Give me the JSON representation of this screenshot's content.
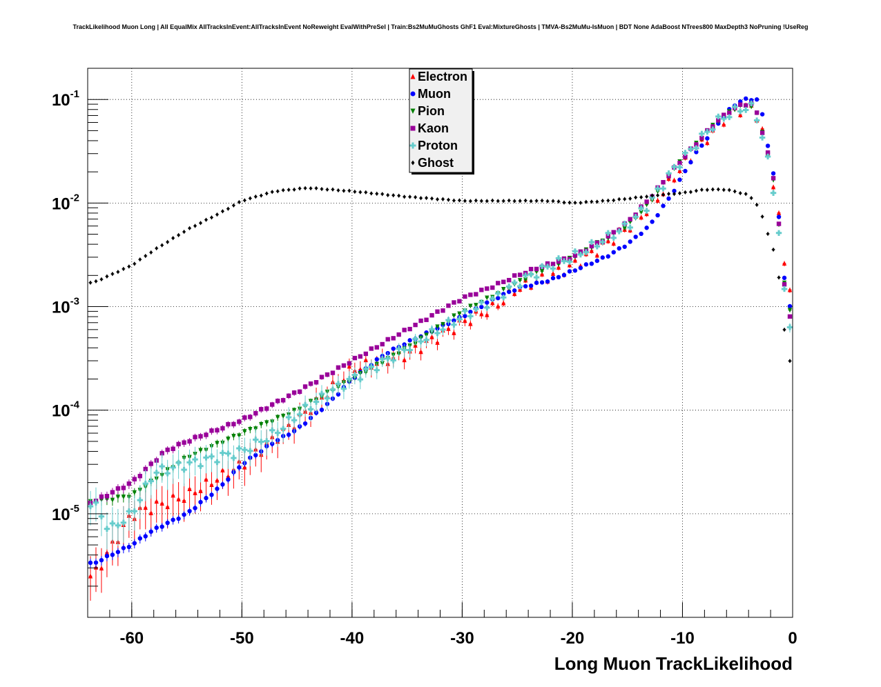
{
  "chart_data": {
    "type": "scatter",
    "title": "TrackLikelihood Muon Long | All EqualMix AllTracksInEvent:AllTracksInEvent NoReweight EvalWithPreSel | Train:Bs2MuMuGhosts GhF1 Eval:MixtureGhosts | TMVA-Bs2MuMu-IsMuon | BDT None AdaBoost NTrees800 MaxDepth3 NoPruning !UseReg",
    "xlabel": "Long Muon TrackLikelihood",
    "ylabel": "",
    "xlim": [
      -64,
      0
    ],
    "ylim": [
      1e-06,
      0.2
    ],
    "yscale": "log",
    "grid": true,
    "legend_position": "top-center",
    "x_ticks": [
      {
        "value": -60,
        "label": "-60"
      },
      {
        "value": -50,
        "label": "-50"
      },
      {
        "value": -40,
        "label": "-40"
      },
      {
        "value": -30,
        "label": "-30"
      },
      {
        "value": -20,
        "label": "-20"
      },
      {
        "value": -10,
        "label": "-10"
      },
      {
        "value": 0,
        "label": "0"
      }
    ],
    "y_ticks": [
      {
        "value": 0.1,
        "base": "10",
        "exp": "-1"
      },
      {
        "value": 0.01,
        "base": "10",
        "exp": "-2"
      },
      {
        "value": 0.001,
        "base": "10",
        "exp": "-3"
      },
      {
        "value": 0.0001,
        "base": "10",
        "exp": "-4"
      },
      {
        "value": 1e-05,
        "base": "10",
        "exp": "-5"
      }
    ],
    "series": [
      {
        "name": "Electron",
        "color": "#ff0000",
        "marker": "triangle-up",
        "err": 0.35,
        "anchors": [
          [
            -63.5,
            2.5e-06
          ],
          [
            -60,
            1e-05
          ],
          [
            -55,
            1.5e-05
          ],
          [
            -50,
            3e-05
          ],
          [
            -45,
            8e-05
          ],
          [
            -40,
            0.00025
          ],
          [
            -35,
            0.00035
          ],
          [
            -30,
            0.0007
          ],
          [
            -27,
            0.001
          ],
          [
            -25,
            0.0015
          ],
          [
            -23,
            0.0018
          ],
          [
            -20,
            0.0025
          ],
          [
            -17,
            0.004
          ],
          [
            -14,
            0.007
          ],
          [
            -12,
            0.012
          ],
          [
            -10,
            0.023
          ],
          [
            -8,
            0.04
          ],
          [
            -6,
            0.07
          ],
          [
            -5,
            0.08
          ],
          [
            -3.5,
            0.085
          ],
          [
            -3,
            0.06
          ],
          [
            -2.5,
            0.038
          ],
          [
            -1.5,
            0.012
          ],
          [
            -0.5,
            0.0016
          ]
        ]
      },
      {
        "name": "Muon",
        "color": "#0000ff",
        "marker": "circle",
        "err": 0.06,
        "anchors": [
          [
            -63.5,
            3.3e-06
          ],
          [
            -60,
            5e-06
          ],
          [
            -58,
            7e-06
          ],
          [
            -55,
            1e-05
          ],
          [
            -52,
            1.8e-05
          ],
          [
            -50,
            3e-05
          ],
          [
            -47,
            5e-05
          ],
          [
            -45,
            6.5e-05
          ],
          [
            -42,
            0.00012
          ],
          [
            -40,
            0.0002
          ],
          [
            -37,
            0.00035
          ],
          [
            -35,
            0.00045
          ],
          [
            -30,
            0.0008
          ],
          [
            -27,
            0.0012
          ],
          [
            -25,
            0.0015
          ],
          [
            -22,
            0.0018
          ],
          [
            -20,
            0.0022
          ],
          [
            -17,
            0.003
          ],
          [
            -15,
            0.004
          ],
          [
            -13,
            0.006
          ],
          [
            -11,
            0.012
          ],
          [
            -9,
            0.028
          ],
          [
            -7,
            0.055
          ],
          [
            -5.5,
            0.085
          ],
          [
            -4.5,
            0.1
          ],
          [
            -3,
            0.1
          ],
          [
            -2.5,
            0.05
          ],
          [
            -1.5,
            0.014
          ],
          [
            -0.5,
            0.001
          ]
        ]
      },
      {
        "name": "Pion",
        "color": "#008000",
        "marker": "triangle-down",
        "err": 0.08,
        "anchors": [
          [
            -63.5,
            1.3e-05
          ],
          [
            -60,
            1.5e-05
          ],
          [
            -57,
            2.5e-05
          ],
          [
            -55,
            3.5e-05
          ],
          [
            -50,
            6e-05
          ],
          [
            -45,
            0.0001
          ],
          [
            -40,
            0.0002
          ],
          [
            -35,
            0.0004
          ],
          [
            -30,
            0.0009
          ],
          [
            -27,
            0.0013
          ],
          [
            -25,
            0.0017
          ],
          [
            -23,
            0.0022
          ],
          [
            -20,
            0.003
          ],
          [
            -17,
            0.0045
          ],
          [
            -15,
            0.006
          ],
          [
            -13,
            0.01
          ],
          [
            -11,
            0.02
          ],
          [
            -9,
            0.035
          ],
          [
            -7,
            0.06
          ],
          [
            -5.5,
            0.08
          ],
          [
            -4.5,
            0.087
          ],
          [
            -3.5,
            0.087
          ],
          [
            -3,
            0.06
          ],
          [
            -2.5,
            0.04
          ],
          [
            -1.5,
            0.012
          ],
          [
            -0.5,
            0.0009
          ]
        ]
      },
      {
        "name": "Kaon",
        "color": "#990099",
        "marker": "square",
        "err": 0.08,
        "anchors": [
          [
            -63.5,
            1.3e-05
          ],
          [
            -60,
            2e-05
          ],
          [
            -57,
            4e-05
          ],
          [
            -55,
            5e-05
          ],
          [
            -50,
            8e-05
          ],
          [
            -45,
            0.00015
          ],
          [
            -40,
            0.0003
          ],
          [
            -35,
            0.0006
          ],
          [
            -30,
            0.0012
          ],
          [
            -27,
            0.0016
          ],
          [
            -25,
            0.002
          ],
          [
            -23,
            0.0024
          ],
          [
            -20,
            0.003
          ],
          [
            -17,
            0.0045
          ],
          [
            -15,
            0.0065
          ],
          [
            -13,
            0.011
          ],
          [
            -11,
            0.02
          ],
          [
            -9,
            0.035
          ],
          [
            -7,
            0.06
          ],
          [
            -5.5,
            0.08
          ],
          [
            -4.5,
            0.09
          ],
          [
            -3.5,
            0.09
          ],
          [
            -3,
            0.06
          ],
          [
            -2.5,
            0.04
          ],
          [
            -1.5,
            0.013
          ],
          [
            -0.5,
            0.0008
          ]
        ]
      },
      {
        "name": "Proton",
        "color": "#66cccc",
        "marker": "plus",
        "err": 0.3,
        "anchors": [
          [
            -63.5,
            1.3e-05
          ],
          [
            -62,
            7e-06
          ],
          [
            -60,
            1e-05
          ],
          [
            -58,
            2.5e-05
          ],
          [
            -55,
            3e-05
          ],
          [
            -50,
            4e-05
          ],
          [
            -47,
            6e-05
          ],
          [
            -45,
            9e-05
          ],
          [
            -42,
            0.00015
          ],
          [
            -40,
            0.0002
          ],
          [
            -37,
            0.0003
          ],
          [
            -35,
            0.0004
          ],
          [
            -30,
            0.0008
          ],
          [
            -27,
            0.0012
          ],
          [
            -25,
            0.0017
          ],
          [
            -22,
            0.0025
          ],
          [
            -20,
            0.003
          ],
          [
            -17,
            0.0045
          ],
          [
            -15,
            0.006
          ],
          [
            -13,
            0.01
          ],
          [
            -11,
            0.02
          ],
          [
            -9,
            0.035
          ],
          [
            -7,
            0.06
          ],
          [
            -5.5,
            0.075
          ],
          [
            -4.5,
            0.083
          ],
          [
            -3.5,
            0.083
          ],
          [
            -3,
            0.055
          ],
          [
            -2.5,
            0.035
          ],
          [
            -1.5,
            0.01
          ],
          [
            -0.5,
            0.0007
          ]
        ]
      },
      {
        "name": "Ghost",
        "color": "#000000",
        "marker": "diamond",
        "err": 0.02,
        "anchors": [
          [
            -63.5,
            0.0017
          ],
          [
            -60,
            0.0025
          ],
          [
            -58,
            0.0035
          ],
          [
            -55,
            0.0055
          ],
          [
            -52,
            0.008
          ],
          [
            -50,
            0.0105
          ],
          [
            -47,
            0.013
          ],
          [
            -44,
            0.014
          ],
          [
            -40,
            0.013
          ],
          [
            -35,
            0.0115
          ],
          [
            -30,
            0.0105
          ],
          [
            -25,
            0.0105
          ],
          [
            -22,
            0.0105
          ],
          [
            -20,
            0.01
          ],
          [
            -17,
            0.0105
          ],
          [
            -15,
            0.011
          ],
          [
            -12,
            0.012
          ],
          [
            -10,
            0.0125
          ],
          [
            -8,
            0.0135
          ],
          [
            -6,
            0.0135
          ],
          [
            -4,
            0.012
          ],
          [
            -3,
            0.009
          ],
          [
            -2.5,
            0.006
          ],
          [
            -1.5,
            0.003
          ],
          [
            -1,
            0.0012
          ],
          [
            -0.5,
            0.0003
          ]
        ]
      }
    ]
  }
}
